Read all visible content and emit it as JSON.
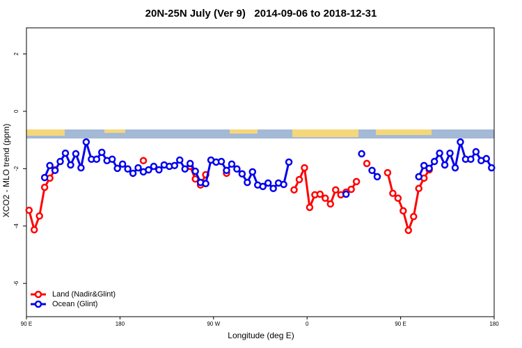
{
  "chart_data": {
    "type": "line",
    "title": "20N-25N July (Ver 9)   2014-09-06 to 2018-12-31",
    "x_label": "Longitude (deg E)",
    "y_label": "XCO2 - MLO trend (ppm)",
    "xlim": [
      90,
      540
    ],
    "ylim": [
      -7.16,
      2.91
    ],
    "xticks": [
      {
        "value": 90,
        "label": "90 E"
      },
      180,
      {
        "value": 270,
        "label": "90 W"
      },
      {
        "value": 360,
        "label": "0"
      },
      {
        "value": 450,
        "label": "90 E"
      },
      180
    ],
    "yticks": [
      -6,
      -4,
      -2,
      0,
      2
    ],
    "legend": "bottom-left",
    "x": [
      92.5,
      97.5,
      102.5,
      107.5,
      112.5,
      117.5,
      122.5,
      127.5,
      132.5,
      137.5,
      142.5,
      147.5,
      152.5,
      157.5,
      162.5,
      167.5,
      172.5,
      177.5,
      182.5,
      187.5,
      192.5,
      197.5,
      202.5,
      207.5,
      212.5,
      217.5,
      222.5,
      227.5,
      232.5,
      237.5,
      242.5,
      247.5,
      252.5,
      257.5,
      262.5,
      267.5,
      272.5,
      277.5,
      282.5,
      287.5,
      292.5,
      297.5,
      302.5,
      307.5,
      312.5,
      317.5,
      322.5,
      327.5,
      332.5,
      337.5,
      342.5,
      347.5,
      352.5,
      357.5,
      362.5,
      367.5,
      372.5,
      377.5,
      382.5,
      387.5,
      392.5,
      397.5,
      402.5,
      407.5,
      412.5,
      417.5,
      422.5,
      427.5,
      432.5,
      437.5,
      442.5,
      447.5,
      452.5,
      457.5,
      462.5,
      467.5,
      472.5,
      477.5,
      482.5,
      487.5,
      492.5,
      497.5,
      502.5,
      507.5,
      512.5,
      517.5,
      522.5,
      527.5,
      532.5,
      537.5
    ],
    "series": [
      {
        "name": "Land (Nadir&Glint)",
        "color": "#ff0000",
        "values": [
          -3.45,
          -4.13,
          -3.65,
          -2.65,
          -2.33,
          -2.04,
          null,
          null,
          null,
          null,
          null,
          null,
          null,
          null,
          null,
          null,
          null,
          null,
          null,
          null,
          null,
          null,
          -1.72,
          null,
          null,
          null,
          null,
          null,
          null,
          null,
          null,
          -1.92,
          -2.36,
          -2.57,
          -2.21,
          null,
          null,
          null,
          -2.16,
          null,
          null,
          null,
          null,
          null,
          null,
          null,
          null,
          null,
          null,
          null,
          null,
          -2.74,
          -2.38,
          -1.97,
          -3.35,
          -2.91,
          -2.89,
          -3.03,
          -3.23,
          -2.74,
          -2.91,
          -2.82,
          -2.72,
          -2.45,
          null,
          -1.82,
          null,
          null,
          null,
          -2.14,
          -2.86,
          -3.03,
          -3.47,
          -4.15,
          -3.67,
          -2.69,
          -2.33,
          -2.04,
          null,
          null,
          null,
          null,
          null,
          null,
          null,
          null,
          null,
          null,
          null,
          null
        ]
      },
      {
        "name": "Ocean (Glint)",
        "color": "#0000ee",
        "values": [
          null,
          null,
          null,
          -2.31,
          -1.89,
          -2.06,
          -1.75,
          -1.46,
          -1.87,
          -1.48,
          -1.97,
          -1.07,
          -1.67,
          -1.67,
          -1.43,
          -1.72,
          -1.67,
          -1.99,
          -1.84,
          -2.01,
          -2.16,
          -1.97,
          -2.11,
          -2.04,
          -1.92,
          -2.04,
          -1.87,
          -1.92,
          -1.89,
          -1.7,
          -2.01,
          -1.82,
          -2.09,
          -2.48,
          -2.52,
          -1.7,
          -1.77,
          -1.75,
          -2.06,
          -1.84,
          -2.01,
          -2.18,
          -2.48,
          -2.11,
          -2.57,
          -2.62,
          -2.5,
          -2.69,
          -2.5,
          -2.55,
          -1.77,
          null,
          null,
          null,
          null,
          null,
          null,
          null,
          null,
          null,
          null,
          -2.89,
          null,
          null,
          -1.48,
          null,
          -2.06,
          -2.28,
          null,
          null,
          null,
          null,
          null,
          null,
          null,
          -2.28,
          -1.89,
          -1.99,
          -1.75,
          -1.46,
          -1.87,
          -1.46,
          -1.97,
          -1.07,
          -1.67,
          -1.67,
          -1.41,
          -1.72,
          -1.65,
          -1.97
        ]
      }
    ]
  }
}
